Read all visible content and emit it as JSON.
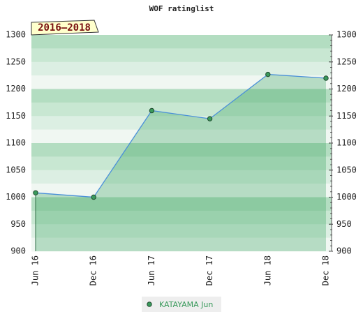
{
  "chart_data": {
    "type": "line",
    "title": "WOF ratinglist",
    "badge": "2016–2018",
    "categories": [
      "Jun 16",
      "Dec 16",
      "Jun 17",
      "Dec 17",
      "Jun 18",
      "Dec 18"
    ],
    "series": [
      {
        "name": "KATAYAMA Jun",
        "color": "#3a9a5c",
        "line_color": "#4a90d9",
        "values": [
          1008,
          1000,
          1160,
          1145,
          1227,
          1220
        ]
      }
    ],
    "ylim": [
      900,
      1300
    ],
    "yticks": [
      900,
      950,
      1000,
      1050,
      1100,
      1150,
      1200,
      1250,
      1300
    ],
    "grid": true
  }
}
